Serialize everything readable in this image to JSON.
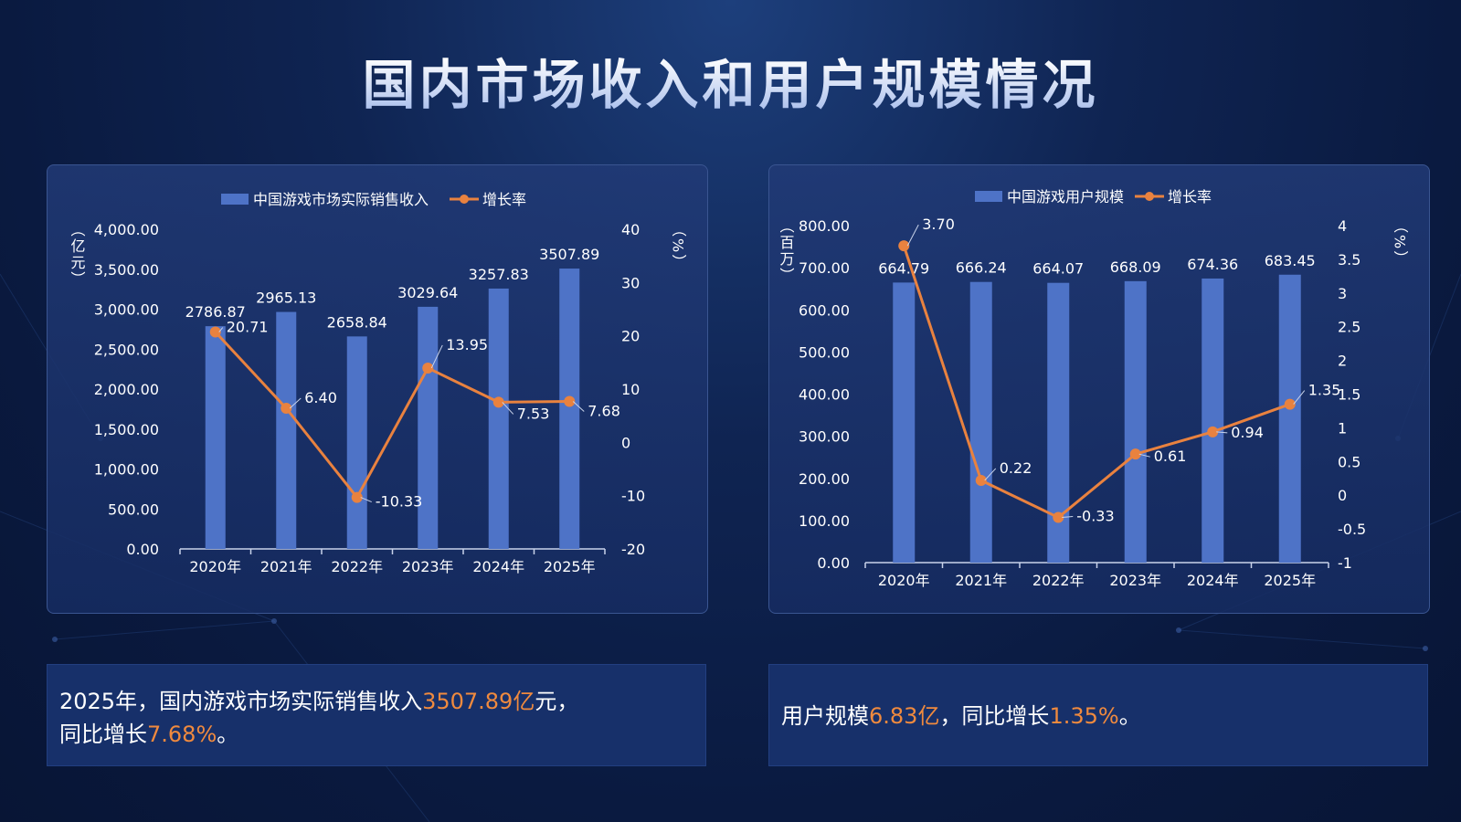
{
  "title": "国内市场收入和用户规模情况",
  "colors": {
    "bar": "#4e73c7",
    "line": "#e9823f",
    "text": "#ffffff",
    "highlight": "#f08a3e"
  },
  "chart_data": [
    {
      "type": "bar",
      "categories": [
        "2020年",
        "2021年",
        "2022年",
        "2023年",
        "2024年",
        "2025年"
      ],
      "series": [
        {
          "name": "中国游戏市场实际销售收入",
          "type": "bar",
          "axis": "left",
          "values": [
            2786.87,
            2965.13,
            2658.84,
            3029.64,
            3257.83,
            3507.89
          ]
        },
        {
          "name": "增长率",
          "type": "line",
          "axis": "right",
          "values": [
            20.71,
            6.4,
            -10.33,
            13.95,
            7.53,
            7.68
          ]
        }
      ],
      "bar_labels": [
        "2786.87",
        "2965.13",
        "2658.84",
        "3029.64",
        "3257.83",
        "3507.89"
      ],
      "line_labels": [
        "20.71",
        "6.40",
        "-10.33",
        "13.95",
        "7.53",
        "7.68"
      ],
      "ylabel_left": "（亿元）",
      "ylabel_right": "（%）",
      "ylim_left": [
        0,
        4000
      ],
      "ylim_right": [
        -20,
        40
      ],
      "yticks_left": [
        "0.00",
        "500.00",
        "1,000.00",
        "1,500.00",
        "2,000.00",
        "2,500.00",
        "3,000.00",
        "3,500.00",
        "4,000.00"
      ],
      "yticks_right": [
        "-20",
        "-10",
        "0",
        "10",
        "20",
        "30",
        "40"
      ],
      "legend": "top"
    },
    {
      "type": "bar",
      "categories": [
        "2020年",
        "2021年",
        "2022年",
        "2023年",
        "2024年",
        "2025年"
      ],
      "series": [
        {
          "name": "中国游戏用户规模",
          "type": "bar",
          "axis": "left",
          "values": [
            664.79,
            666.24,
            664.07,
            668.09,
            674.36,
            683.45
          ]
        },
        {
          "name": "增长率",
          "type": "line",
          "axis": "right",
          "values": [
            3.7,
            0.22,
            -0.33,
            0.61,
            0.94,
            1.35
          ]
        }
      ],
      "bar_labels": [
        "664.79",
        "666.24",
        "664.07",
        "668.09",
        "674.36",
        "683.45"
      ],
      "line_labels": [
        "3.70",
        "0.22",
        "-0.33",
        "0.61",
        "0.94",
        "1.35"
      ],
      "ylabel_left": "（百万）",
      "ylabel_right": "（%）",
      "ylim_left": [
        0,
        800
      ],
      "ylim_right": [
        -1,
        4
      ],
      "yticks_left": [
        "0.00",
        "100.00",
        "200.00",
        "300.00",
        "400.00",
        "500.00",
        "600.00",
        "700.00",
        "800.00"
      ],
      "yticks_right": [
        "-1",
        "-0.5",
        "0",
        "0.5",
        "1",
        "1.5",
        "2",
        "2.5",
        "3",
        "3.5",
        "4"
      ],
      "legend": "top"
    }
  ],
  "captions": {
    "left": {
      "p1": "2025年，国内游戏市场实际销售收入",
      "v1": "3507.89亿",
      "p2": "元，",
      "p3": "同比增长",
      "v2": "7.68%",
      "p4": "。"
    },
    "right": {
      "p1": "用户规模",
      "v1": "6.83亿",
      "p2": "，同比增长",
      "v2": "1.35%",
      "p3": "。"
    }
  }
}
